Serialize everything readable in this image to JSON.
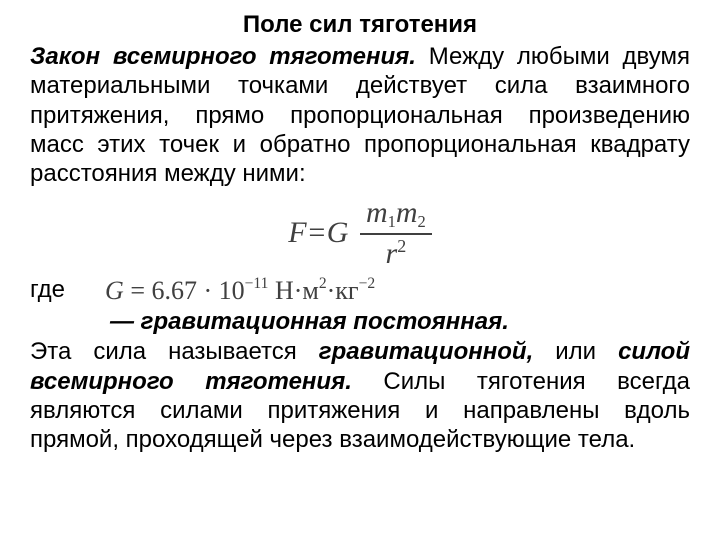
{
  "title": "Поле сил тяготения",
  "para1": {
    "law_name": "Закон всемирного тяготения.",
    "text_after": " Между любыми двумя материальными точками действует сила взаимного притяжения, прямо пропорциональная произведению масс этих точек и обратно пропор­циональная квадрату расстояния между ними:"
  },
  "formula": {
    "F": "F",
    "eq": " = ",
    "G": "G",
    "m1": "m",
    "s1": "1",
    "m2": "m",
    "s2": "2",
    "r": "r",
    "two": "2"
  },
  "where": "где",
  "g_const": {
    "G": "G",
    "eq": " = 6.67 · 10",
    "exp": "−11",
    "units_pre": "  Н·м",
    "u_exp1": "2",
    "units_mid": "·кг",
    "u_exp2": "−2"
  },
  "grav_const_label": "— гравитационная постоянная.",
  "para2": {
    "t1": "Эта сила называется ",
    "term1": "гравитационной,",
    "t2": " или ",
    "term2": "силой всемирного тяготения.",
    "t3": " Силы тяготения всегда являются силами притяжения и направлены вдоль прямой, проходящей через взаимодействую­щие тела."
  },
  "colors": {
    "text": "#000000",
    "formula": "#404040",
    "bg": "#ffffff"
  },
  "fontsizes": {
    "body": 24,
    "formula": 30,
    "gconst": 26
  }
}
